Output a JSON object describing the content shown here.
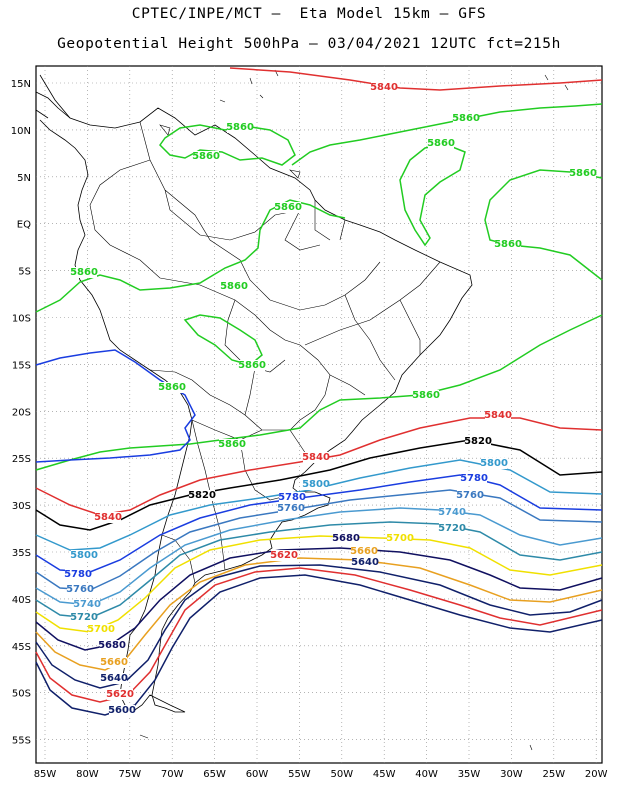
{
  "title_line1": "CPTEC/INPE/MCT –  Eta Model 15km – GFS",
  "title_line2": "Geopotential Height 500hPa – 03/04/2021 12UTC fct=215h",
  "lat_labels": [
    "15N",
    "10N",
    "5N",
    "EQ",
    "5S",
    "10S",
    "15S",
    "20S",
    "25S",
    "30S",
    "35S",
    "40S",
    "45S",
    "50S",
    "55S"
  ],
  "lon_labels": [
    "85W",
    "80W",
    "75W",
    "70W",
    "65W",
    "60W",
    "55W",
    "50W",
    "45W",
    "40W",
    "35W",
    "30W",
    "25W",
    "20W"
  ],
  "colors": {
    "5860": "#22cc22",
    "5840": "#e03030",
    "5820": "#000000",
    "5800": "#3399cc",
    "5780": "#1a3de0",
    "5760": "#3a78c0",
    "5740": "#4a9ad0",
    "5720": "#2e8aa8",
    "5700": "#f0e000",
    "5680": "#101060",
    "5660": "#e8a020",
    "5640": "#10206a",
    "5600": "#10206a"
  },
  "contour_labels": [
    {
      "id": "l1",
      "text": "5840",
      "color_key": "5840"
    },
    {
      "id": "l2",
      "text": "5860",
      "color_key": "5860"
    },
    {
      "id": "l3",
      "text": "5860",
      "color_key": "5860"
    },
    {
      "id": "l4",
      "text": "5860",
      "color_key": "5860"
    },
    {
      "id": "l5",
      "text": "5860",
      "color_key": "5860"
    },
    {
      "id": "l6",
      "text": "5860",
      "color_key": "5860"
    },
    {
      "id": "l7",
      "text": "5860",
      "color_key": "5860"
    },
    {
      "id": "l8",
      "text": "5860",
      "color_key": "5860"
    },
    {
      "id": "l9",
      "text": "5860",
      "color_key": "5860"
    },
    {
      "id": "l10",
      "text": "5860",
      "color_key": "5860"
    },
    {
      "id": "l11",
      "text": "5860",
      "color_key": "5860"
    },
    {
      "id": "l12",
      "text": "5860",
      "color_key": "5860"
    },
    {
      "id": "l13",
      "text": "5860",
      "color_key": "5860"
    },
    {
      "id": "l14",
      "text": "5860",
      "color_key": "5860"
    },
    {
      "id": "l15",
      "text": "5840",
      "color_key": "5840"
    },
    {
      "id": "l16",
      "text": "5820",
      "color_key": "5820"
    },
    {
      "id": "l17",
      "text": "5840",
      "color_key": "5840"
    },
    {
      "id": "l18",
      "text": "5800",
      "color_key": "5800"
    },
    {
      "id": "l19",
      "text": "5780",
      "color_key": "5780"
    },
    {
      "id": "l20",
      "text": "5760",
      "color_key": "5760"
    },
    {
      "id": "l21",
      "text": "5740",
      "color_key": "5740"
    },
    {
      "id": "l22",
      "text": "5720",
      "color_key": "5720"
    },
    {
      "id": "l23",
      "text": "5820",
      "color_key": "5820"
    },
    {
      "id": "l24",
      "text": "5840",
      "color_key": "5840"
    },
    {
      "id": "l25",
      "text": "5800",
      "color_key": "5800"
    },
    {
      "id": "l26",
      "text": "5780",
      "color_key": "5780"
    },
    {
      "id": "l27",
      "text": "5760",
      "color_key": "5760"
    },
    {
      "id": "l28",
      "text": "5740",
      "color_key": "5740"
    },
    {
      "id": "l29",
      "text": "5720",
      "color_key": "5720"
    },
    {
      "id": "l30",
      "text": "5700",
      "color_key": "5700"
    },
    {
      "id": "l31",
      "text": "5680",
      "color_key": "5680"
    },
    {
      "id": "l32",
      "text": "5660",
      "color_key": "5660"
    },
    {
      "id": "l33",
      "text": "5640",
      "color_key": "5640"
    },
    {
      "id": "l34",
      "text": "5620",
      "color_key": "5840"
    },
    {
      "id": "l35",
      "text": "5600",
      "color_key": "5600"
    },
    {
      "id": "l36",
      "text": "5800",
      "color_key": "5800"
    },
    {
      "id": "l37",
      "text": "5780",
      "color_key": "5780"
    },
    {
      "id": "l38",
      "text": "5760",
      "color_key": "5760"
    },
    {
      "id": "l39",
      "text": "5680",
      "color_key": "5680"
    },
    {
      "id": "l40",
      "text": "5700",
      "color_key": "5700"
    },
    {
      "id": "l41",
      "text": "5660",
      "color_key": "5660"
    },
    {
      "id": "l42",
      "text": "5620",
      "color_key": "5840"
    },
    {
      "id": "l43",
      "text": "5640",
      "color_key": "5640"
    }
  ]
}
